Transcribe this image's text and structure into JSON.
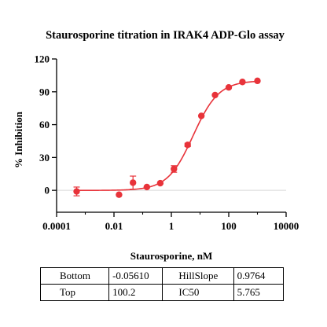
{
  "chart_data": {
    "type": "scatter",
    "title": "Staurosporine titration in IRAK4 ADP-Glo assay",
    "xlabel": "Staurosporine, nM",
    "ylabel": "% Inhibition",
    "xscale": "log",
    "xlim": [
      0.0001,
      10000
    ],
    "ylim": [
      -20,
      120
    ],
    "xticks": [
      0.0001,
      0.01,
      1,
      100,
      10000
    ],
    "xtick_labels": [
      "0.0001",
      "0.01",
      "1",
      "100",
      "10000"
    ],
    "yticks": [
      0,
      30,
      60,
      90,
      120
    ],
    "ytick_labels": [
      "0",
      "30",
      "60",
      "90",
      "120"
    ],
    "zero_line": true,
    "grid": false,
    "color": "#e8333a",
    "points": [
      {
        "x": 0.0005,
        "y": -1.0,
        "err": 4.0
      },
      {
        "x": 0.015,
        "y": -4.0,
        "err": 1.0
      },
      {
        "x": 0.046,
        "y": 7.0,
        "err": 6.0
      },
      {
        "x": 0.14,
        "y": 3.0,
        "err": 1.0
      },
      {
        "x": 0.41,
        "y": 6.5,
        "err": 1.0
      },
      {
        "x": 1.23,
        "y": 19.5,
        "err": 3.0
      },
      {
        "x": 3.7,
        "y": 41.5,
        "err": 1.5
      },
      {
        "x": 11.1,
        "y": 68.0,
        "err": 1.0
      },
      {
        "x": 33.3,
        "y": 87.0,
        "err": 1.0
      },
      {
        "x": 100,
        "y": 94.0,
        "err": 1.0
      },
      {
        "x": 300,
        "y": 99.0,
        "err": 1.0
      },
      {
        "x": 1000,
        "y": 100.0,
        "err": 1.0
      }
    ],
    "fit": {
      "model": "four-parameter logistic",
      "Bottom": -0.0561,
      "Top": 100.2,
      "IC50": 5.765,
      "HillSlope": 0.9764
    }
  },
  "params_table": {
    "rows": [
      {
        "label1": "Bottom",
        "value1": "-0.05610",
        "label2": "HillSlope",
        "value2": "0.9764"
      },
      {
        "label1": "Top",
        "value1": "100.2",
        "label2": "IC50",
        "value2": "5.765"
      }
    ]
  }
}
